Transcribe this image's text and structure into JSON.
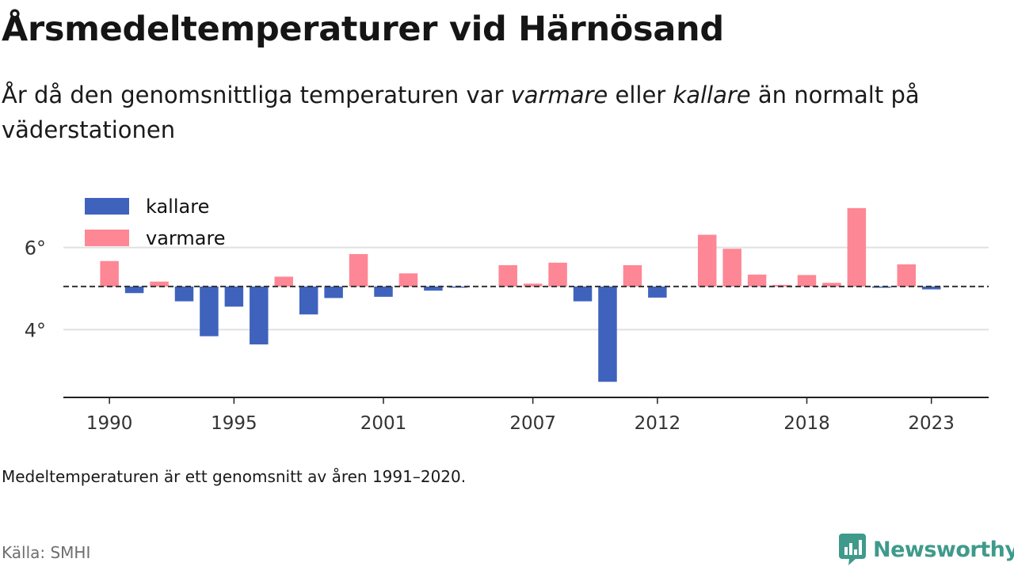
{
  "title": "Årsmedeltemperaturer vid Härnösand",
  "subtitle": {
    "part1": "År då den genomsnittliga temperaturen var ",
    "warmer_word": "varmare",
    "part2": " eller ",
    "colder_word": "kallare",
    "part3": " än normalt på väderstationen"
  },
  "note": "Medeltemperaturen är ett genomsnitt av åren 1991–2020.",
  "source": "Källa: SMHI",
  "brand": "Newsworthy",
  "colors": {
    "kallare": "#3f63bd",
    "varmare": "#fe8795",
    "baseline": "#333333",
    "grid": "#e0e0e0",
    "axis": "#222222",
    "brand": "#3f9a8b"
  },
  "chart_data": {
    "type": "bar",
    "baseline": 5.05,
    "baseline_style": "dashed",
    "x": [
      1990,
      1991,
      1992,
      1993,
      1994,
      1995,
      1996,
      1997,
      1998,
      1999,
      2000,
      2001,
      2002,
      2003,
      2004,
      2005,
      2006,
      2007,
      2008,
      2009,
      2010,
      2011,
      2012,
      2013,
      2014,
      2015,
      2016,
      2017,
      2018,
      2019,
      2020,
      2021,
      2022,
      2023
    ],
    "values": [
      5.67,
      4.89,
      5.17,
      4.69,
      3.84,
      4.56,
      3.64,
      5.29,
      4.37,
      4.77,
      5.84,
      4.8,
      5.37,
      4.95,
      5.03,
      null,
      5.57,
      5.12,
      5.63,
      4.69,
      2.73,
      5.57,
      4.78,
      null,
      6.31,
      5.97,
      5.34,
      5.09,
      5.33,
      5.14,
      6.96,
      5.02,
      5.59,
      4.98
    ],
    "categories": {
      "kallare": "kallare",
      "varmare": "varmare"
    },
    "legend": [
      {
        "key": "kallare",
        "label": "kallare"
      },
      {
        "key": "varmare",
        "label": "varmare"
      }
    ],
    "legend_position": "top-left",
    "x_ticks": [
      1990,
      1995,
      2001,
      2007,
      2012,
      2018,
      2023
    ],
    "y_ticks": [
      {
        "value": 4,
        "label": "4°"
      },
      {
        "value": 6,
        "label": "6°"
      }
    ],
    "ylim": [
      2.35,
      7.4
    ],
    "xlim": [
      1988.15,
      2025.3
    ],
    "grid": "horizontal"
  }
}
